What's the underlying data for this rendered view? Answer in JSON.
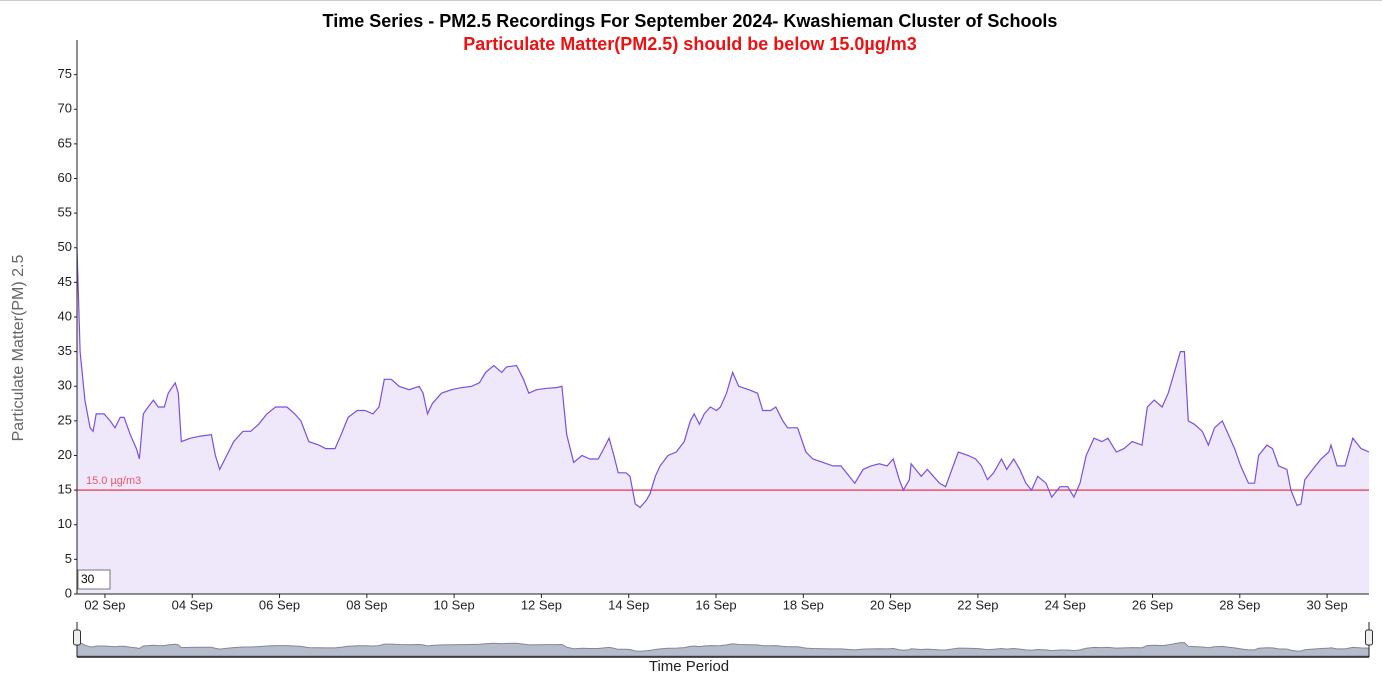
{
  "chart_data": {
    "type": "line",
    "title": "Time Series - PM2.5 Recordings For September 2024- Kwashieman Cluster of Schools",
    "subtitle": "Particulate Matter(PM2.5) should be below 15.0µg/m3",
    "y_label": "Particulate Matter(PM) 2.5",
    "x_label": "Time Period",
    "rolling_period": 30,
    "threshold": 15,
    "threshold_label": "15.0 µg/m3",
    "threshold_color": "#e8556a",
    "color": "#7b4fe0",
    "fill_color": "#efe8fb",
    "xlim": [
      1.36,
      30.96
    ],
    "ylim": [
      0,
      80
    ],
    "yticks": [
      0,
      5,
      10,
      15,
      20,
      25,
      30,
      35,
      40,
      45,
      50,
      55,
      60,
      65,
      70,
      75
    ],
    "xticks": [
      {
        "value": 2,
        "label": "02 Sep"
      },
      {
        "value": 4,
        "label": "04 Sep"
      },
      {
        "value": 6,
        "label": "06 Sep"
      },
      {
        "value": 8,
        "label": "08 Sep"
      },
      {
        "value": 10,
        "label": "10 Sep"
      },
      {
        "value": 12,
        "label": "12 Sep"
      },
      {
        "value": 14,
        "label": "14 Sep"
      },
      {
        "value": 16,
        "label": "16 Sep"
      },
      {
        "value": 18,
        "label": "18 Sep"
      },
      {
        "value": 20,
        "label": "20 Sep"
      },
      {
        "value": 22,
        "label": "22 Sep"
      },
      {
        "value": 24,
        "label": "24 Sep"
      },
      {
        "value": 26,
        "label": "26 Sep"
      },
      {
        "value": 28,
        "label": "28 Sep"
      },
      {
        "value": 30,
        "label": "30 Sep"
      }
    ],
    "x": [
      1.36,
      1.43,
      1.54,
      1.66,
      1.73,
      1.8,
      1.98,
      2.12,
      2.23,
      2.35,
      2.44,
      2.58,
      2.72,
      2.79,
      2.88,
      2.99,
      3.11,
      3.22,
      3.36,
      3.45,
      3.61,
      3.68,
      3.75,
      3.96,
      4.19,
      4.44,
      4.53,
      4.63,
      4.79,
      4.95,
      5.16,
      5.34,
      5.52,
      5.71,
      5.91,
      6.17,
      6.35,
      6.49,
      6.67,
      6.9,
      7.06,
      7.27,
      7.41,
      7.57,
      7.78,
      7.96,
      8.14,
      8.28,
      8.4,
      8.56,
      8.74,
      8.97,
      9.2,
      9.29,
      9.39,
      9.5,
      9.71,
      9.94,
      10.17,
      10.4,
      10.58,
      10.72,
      10.91,
      11.09,
      11.2,
      11.43,
      11.59,
      11.71,
      11.89,
      12.12,
      12.35,
      12.47,
      12.58,
      12.74,
      12.93,
      13.11,
      13.3,
      13.43,
      13.55,
      13.66,
      13.76,
      13.94,
      14.03,
      14.15,
      14.26,
      14.4,
      14.49,
      14.61,
      14.72,
      14.9,
      15.09,
      15.27,
      15.41,
      15.5,
      15.62,
      15.73,
      15.87,
      16.01,
      16.1,
      16.24,
      16.38,
      16.52,
      16.75,
      16.95,
      17.07,
      17.25,
      17.37,
      17.53,
      17.64,
      17.87,
      18.06,
      18.22,
      18.45,
      18.68,
      18.86,
      19.18,
      19.37,
      19.55,
      19.74,
      19.92,
      20.06,
      20.2,
      20.29,
      20.43,
      20.47,
      20.7,
      20.84,
      20.98,
      21.12,
      21.26,
      21.55,
      21.78,
      21.95,
      22.08,
      22.22,
      22.36,
      22.54,
      22.66,
      22.82,
      22.96,
      23.1,
      23.23,
      23.37,
      23.56,
      23.69,
      23.88,
      24.06,
      24.2,
      24.34,
      24.48,
      24.66,
      24.84,
      24.98,
      25.17,
      25.35,
      25.53,
      25.76,
      25.88,
      26.04,
      26.22,
      26.36,
      26.5,
      26.64,
      26.73,
      26.82,
      26.96,
      27.14,
      27.28,
      27.42,
      27.6,
      27.74,
      27.88,
      28.02,
      28.2,
      28.34,
      28.43,
      28.62,
      28.75,
      28.89,
      29.08,
      29.17,
      29.31,
      29.4,
      29.49,
      29.67,
      29.86,
      30.04,
      30.09,
      30.23,
      30.41,
      30.59,
      30.78,
      30.96
    ],
    "values": [
      50,
      35,
      28,
      24,
      23.5,
      26,
      26,
      25,
      24,
      25.5,
      25.5,
      23,
      21,
      19.5,
      26,
      27,
      28,
      27,
      27,
      29,
      30.5,
      29,
      22,
      22.5,
      22.8,
      23,
      20,
      18,
      20,
      22,
      23.5,
      23.5,
      24.5,
      26,
      27,
      27,
      26,
      25,
      22,
      21.5,
      21,
      21,
      23,
      25.5,
      26.5,
      26.5,
      26,
      27,
      31,
      31,
      30,
      29.5,
      30,
      29,
      26,
      27.5,
      29,
      29.5,
      29.8,
      30,
      30.5,
      32,
      33,
      32,
      32.8,
      33,
      31,
      29,
      29.5,
      29.7,
      29.8,
      30,
      23,
      19,
      20,
      19.5,
      19.5,
      21,
      22.5,
      20,
      17.5,
      17.5,
      17,
      13,
      12.5,
      13.5,
      14.5,
      17,
      18.5,
      20,
      20.5,
      22,
      25,
      26,
      24.5,
      26,
      27,
      26.5,
      27,
      29,
      32,
      30,
      29.5,
      29,
      26.5,
      26.5,
      27,
      25,
      24,
      24,
      20.5,
      19.5,
      19,
      18.5,
      18.5,
      16,
      18,
      18.5,
      18.8,
      18.5,
      19.5,
      16.5,
      15,
      16.5,
      18.8,
      17,
      18,
      17,
      16,
      15.5,
      20.5,
      20,
      19.5,
      18.5,
      16.5,
      17.5,
      19.5,
      18,
      19.5,
      18,
      16,
      15,
      17,
      16,
      14,
      15.5,
      15.5,
      14,
      16,
      20,
      22.5,
      22,
      22.5,
      20.5,
      21,
      22,
      21.5,
      27,
      28,
      27,
      29,
      32,
      35,
      35,
      25,
      24.5,
      23.5,
      21.5,
      24,
      25,
      23,
      21,
      18.5,
      16,
      16,
      20,
      21.5,
      21,
      18.5,
      18,
      15,
      12.8,
      13,
      16.5,
      18,
      19.5,
      20.5,
      21.5,
      18.5,
      18.5,
      22.5,
      21,
      20.5
    ]
  }
}
